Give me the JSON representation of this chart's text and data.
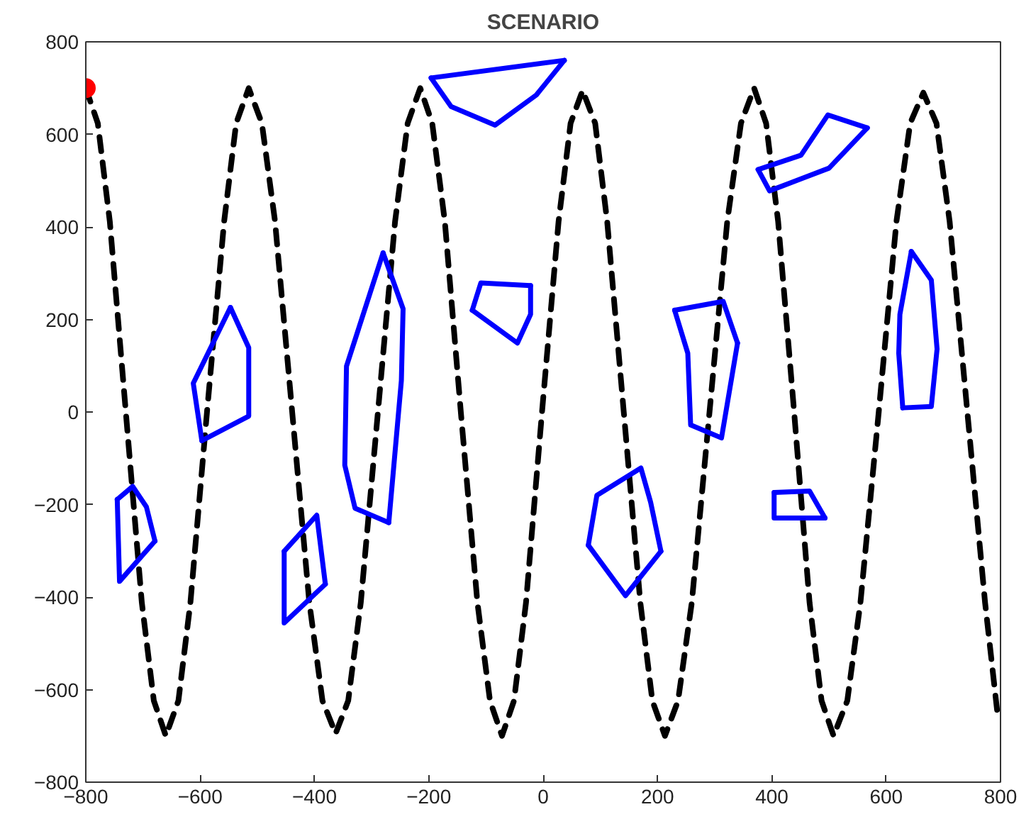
{
  "chart_data": {
    "type": "line",
    "title": "SCENARIO",
    "xlim": [
      -800,
      800
    ],
    "ylim": [
      -800,
      800
    ],
    "xticks": [
      -800,
      -600,
      -400,
      -200,
      0,
      200,
      400,
      600,
      800
    ],
    "yticks": [
      -800,
      -600,
      -400,
      -200,
      0,
      200,
      400,
      600,
      800
    ],
    "grid": false,
    "series": [
      {
        "type": "line",
        "color": "#000000",
        "line_style": "dashed",
        "marker": "none",
        "x": [
          -800,
          -779,
          -758,
          -730,
          -702,
          -681,
          -660,
          -638,
          -617,
          -588,
          -558,
          -537,
          -515,
          -492,
          -469,
          -439,
          -409,
          -386,
          -363,
          -341,
          -319,
          -289,
          -259,
          -237,
          -215,
          -194,
          -172,
          -144,
          -115,
          -93,
          -72,
          -51,
          -30,
          -2,
          27,
          48,
          69,
          91,
          112,
          141,
          170,
          191,
          213,
          236,
          260,
          291,
          322,
          346,
          369,
          390,
          411,
          439,
          466,
          487,
          508,
          532,
          555,
          587,
          618,
          642,
          665,
          688,
          711,
          742,
          773,
          795
        ],
        "values": [
          700,
          624,
          412,
          0,
          -412,
          -624,
          -700,
          -624,
          -412,
          0,
          412,
          624,
          700,
          624,
          412,
          0,
          -412,
          -624,
          -695,
          -624,
          -412,
          0,
          412,
          624,
          700,
          624,
          412,
          0,
          -412,
          -624,
          -700,
          -624,
          -412,
          0,
          412,
          624,
          695,
          624,
          412,
          0,
          -412,
          -624,
          -700,
          -624,
          -412,
          0,
          412,
          624,
          700,
          624,
          412,
          0,
          -412,
          -624,
          -700,
          -624,
          -412,
          0,
          412,
          624,
          690,
          624,
          412,
          0,
          -412,
          -655
        ]
      },
      {
        "color": "#0000ff",
        "line_style": "solid",
        "marker": "none",
        "x": [
          -745,
          -718,
          -694,
          -679
        ],
        "values": [
          -189,
          -161,
          -205,
          -279
        ]
      },
      {
        "color": "#0000ff",
        "line_style": "solid",
        "marker": "none",
        "x": [
          -745,
          -741,
          -679
        ],
        "values": [
          -189,
          -366,
          -279
        ]
      },
      {
        "color": "#0000ff",
        "line_style": "solid",
        "marker": "none",
        "x": [
          -547,
          -515,
          -515,
          -597
        ],
        "values": [
          226,
          139,
          -9,
          -62
        ]
      },
      {
        "color": "#0000ff",
        "line_style": "solid",
        "marker": "none",
        "x": [
          -597,
          -612,
          -547
        ],
        "values": [
          -62,
          62,
          226
        ]
      },
      {
        "color": "#0000ff",
        "line_style": "solid",
        "marker": "none",
        "x": [
          -453,
          -396,
          -381
        ],
        "values": [
          -301,
          -223,
          -372
        ]
      },
      {
        "color": "#0000ff",
        "line_style": "solid",
        "marker": "none",
        "x": [
          -453,
          -453,
          -381
        ],
        "values": [
          -301,
          -456,
          -372
        ]
      },
      {
        "color": "#0000ff",
        "line_style": "solid",
        "marker": "none",
        "x": [
          -280,
          -245,
          -248,
          -270
        ],
        "values": [
          344,
          223,
          68,
          -239
        ]
      },
      {
        "color": "#0000ff",
        "line_style": "solid",
        "marker": "none",
        "x": [
          -270,
          -329,
          -347,
          -344,
          -280
        ],
        "values": [
          -239,
          -208,
          -115,
          99,
          344
        ]
      },
      {
        "color": "#0000ff",
        "line_style": "solid",
        "marker": "none",
        "x": [
          -196,
          37
        ],
        "values": [
          722,
          760
        ]
      },
      {
        "color": "#0000ff",
        "line_style": "solid",
        "marker": "none",
        "x": [
          -196,
          -161,
          -84,
          -12,
          37
        ],
        "values": [
          722,
          660,
          620,
          685,
          760
        ]
      },
      {
        "color": "#0000ff",
        "line_style": "solid",
        "marker": "none",
        "x": [
          -124,
          -109,
          -22
        ],
        "values": [
          220,
          279,
          273
        ]
      },
      {
        "color": "#0000ff",
        "line_style": "solid",
        "marker": "none",
        "x": [
          -124,
          -45,
          -22,
          -22
        ],
        "values": [
          220,
          149,
          211,
          273
        ]
      },
      {
        "color": "#0000ff",
        "line_style": "solid",
        "marker": "none",
        "x": [
          79,
          94,
          171,
          188,
          206
        ],
        "values": [
          -288,
          -180,
          -121,
          -195,
          -301
        ]
      },
      {
        "color": "#0000ff",
        "line_style": "solid",
        "marker": "none",
        "x": [
          79,
          144,
          206
        ],
        "values": [
          -288,
          -397,
          -301
        ]
      },
      {
        "color": "#0000ff",
        "line_style": "solid",
        "marker": "none",
        "x": [
          230,
          315,
          340
        ],
        "values": [
          220,
          239,
          149
        ]
      },
      {
        "color": "#0000ff",
        "line_style": "solid",
        "marker": "none",
        "x": [
          230,
          253,
          258,
          312,
          340
        ],
        "values": [
          220,
          127,
          -28,
          -56,
          149
        ]
      },
      {
        "color": "#0000ff",
        "line_style": "solid",
        "marker": "none",
        "x": [
          404,
          466,
          493
        ],
        "values": [
          -174,
          -171,
          -229
        ]
      },
      {
        "color": "#0000ff",
        "line_style": "solid",
        "marker": "none",
        "x": [
          404,
          404,
          493
        ],
        "values": [
          -174,
          -229,
          -229
        ]
      },
      {
        "color": "#0000ff",
        "line_style": "solid",
        "marker": "none",
        "x": [
          376,
          451,
          498,
          567
        ],
        "values": [
          524,
          555,
          642,
          614
        ]
      },
      {
        "color": "#0000ff",
        "line_style": "solid",
        "marker": "none",
        "x": [
          376,
          396,
          500,
          567
        ],
        "values": [
          524,
          478,
          527,
          614
        ]
      },
      {
        "color": "#0000ff",
        "line_style": "solid",
        "marker": "none",
        "x": [
          644,
          679,
          689,
          679,
          629
        ],
        "values": [
          347,
          285,
          136,
          12,
          9
        ]
      },
      {
        "color": "#0000ff",
        "line_style": "solid",
        "marker": "none",
        "x": [
          629,
          622,
          624,
          644
        ],
        "values": [
          9,
          127,
          211,
          347
        ]
      },
      {
        "type": "scatter",
        "color": "#ff0000",
        "marker": "circle",
        "x": [
          -800
        ],
        "values": [
          700
        ]
      }
    ]
  }
}
